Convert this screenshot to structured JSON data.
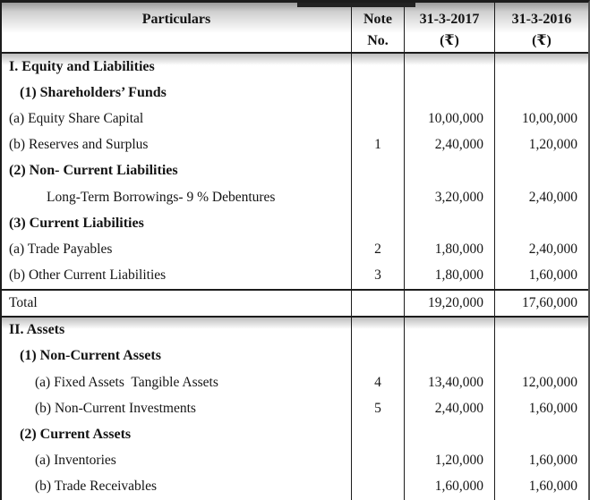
{
  "table": {
    "columns": {
      "particulars": "Particulars",
      "note_line1": "Note",
      "note_line2": "No.",
      "y2017_line1": "31-3-2017",
      "y2017_line2": "(₹)",
      "y2016_line1": "31-3-2016",
      "y2016_line2": "(₹)"
    },
    "rows": [
      {
        "label": "I. Equity and Liabilities",
        "bold": true,
        "indent": 0,
        "note": "",
        "v2017": "",
        "v2016": "",
        "total": false,
        "shade": true
      },
      {
        "label": "(1) Shareholders’ Funds",
        "bold": true,
        "indent": 1,
        "note": "",
        "v2017": "",
        "v2016": "",
        "total": false,
        "shade": false
      },
      {
        "label": "(a) Equity Share Capital",
        "bold": false,
        "indent": 0,
        "note": "",
        "v2017": "10,00,000",
        "v2016": "10,00,000",
        "total": false,
        "shade": false
      },
      {
        "label": "(b) Reserves and Surplus",
        "bold": false,
        "indent": 0,
        "note": "1",
        "v2017": "2,40,000",
        "v2016": "1,20,000",
        "total": false,
        "shade": false
      },
      {
        "label": "(2) Non- Current Liabilities",
        "bold": true,
        "indent": 0,
        "note": "",
        "v2017": "",
        "v2016": "",
        "total": false,
        "shade": false
      },
      {
        "label": "Long-Term Borrowings- 9 % Debentures",
        "bold": false,
        "indent": 3,
        "note": "",
        "v2017": "3,20,000",
        "v2016": "2,40,000",
        "total": false,
        "shade": false
      },
      {
        "label": "(3) Current Liabilities",
        "bold": true,
        "indent": 0,
        "note": "",
        "v2017": "",
        "v2016": "",
        "total": false,
        "shade": false
      },
      {
        "label": "(a) Trade Payables",
        "bold": false,
        "indent": 0,
        "note": "2",
        "v2017": "1,80,000",
        "v2016": "2,40,000",
        "total": false,
        "shade": false
      },
      {
        "label": "(b) Other Current Liabilities",
        "bold": false,
        "indent": 0,
        "note": "3",
        "v2017": "1,80,000",
        "v2016": "1,60,000",
        "total": false,
        "shade": false
      },
      {
        "label": "Total",
        "bold": false,
        "indent": 0,
        "note": "",
        "v2017": "19,20,000",
        "v2016": "17,60,000",
        "total": true,
        "shade": false
      },
      {
        "label": "II. Assets",
        "bold": true,
        "indent": 0,
        "note": "",
        "v2017": "",
        "v2016": "",
        "total": false,
        "shade": true
      },
      {
        "label": "(1) Non-Current Assets",
        "bold": true,
        "indent": 1,
        "note": "",
        "v2017": "",
        "v2016": "",
        "total": false,
        "shade": false
      },
      {
        "label": "(a) Fixed Assets  Tangible Assets",
        "bold": false,
        "indent": 2,
        "note": "4",
        "v2017": "13,40,000",
        "v2016": "12,00,000",
        "total": false,
        "shade": false
      },
      {
        "label": "(b) Non-Current Investments",
        "bold": false,
        "indent": 2,
        "note": "5",
        "v2017": "2,40,000",
        "v2016": "1,60,000",
        "total": false,
        "shade": false
      },
      {
        "label": "(2) Current Assets",
        "bold": true,
        "indent": 1,
        "note": "",
        "v2017": "",
        "v2016": "",
        "total": false,
        "shade": false
      },
      {
        "label": "(a) Inventories",
        "bold": false,
        "indent": 2,
        "note": "",
        "v2017": "1,20,000",
        "v2016": "1,60,000",
        "total": false,
        "shade": false
      },
      {
        "label": "(b) Trade Receivables",
        "bold": false,
        "indent": 2,
        "note": "",
        "v2017": "1,60,000",
        "v2016": "1,60,000",
        "total": false,
        "shade": false
      }
    ]
  },
  "colors": {
    "border": "#1c1c1c",
    "text": "#141414",
    "header_shade_top": "#9a9a9a"
  }
}
